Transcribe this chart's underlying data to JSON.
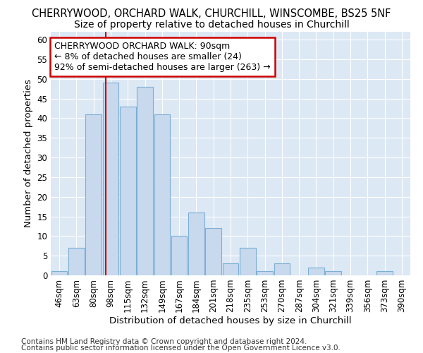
{
  "title1": "CHERRYWOOD, ORCHARD WALK, CHURCHILL, WINSCOMBE, BS25 5NF",
  "title2": "Size of property relative to detached houses in Churchill",
  "xlabel": "Distribution of detached houses by size in Churchill",
  "ylabel": "Number of detached properties",
  "footer1": "Contains HM Land Registry data © Crown copyright and database right 2024.",
  "footer2": "Contains public sector information licensed under the Open Government Licence v3.0.",
  "categories": [
    "46sqm",
    "63sqm",
    "80sqm",
    "98sqm",
    "115sqm",
    "132sqm",
    "149sqm",
    "167sqm",
    "184sqm",
    "201sqm",
    "218sqm",
    "235sqm",
    "253sqm",
    "270sqm",
    "287sqm",
    "304sqm",
    "321sqm",
    "339sqm",
    "356sqm",
    "373sqm",
    "390sqm"
  ],
  "values": [
    1,
    7,
    41,
    49,
    43,
    48,
    41,
    10,
    16,
    12,
    3,
    7,
    1,
    3,
    0,
    2,
    1,
    0,
    0,
    1,
    0
  ],
  "bar_color": "#c8d9ee",
  "bar_edge_color": "#7bafd4",
  "red_line_x": 2.72,
  "annotation_line1": "CHERRYWOOD ORCHARD WALK: 90sqm",
  "annotation_line2": "← 8% of detached houses are smaller (24)",
  "annotation_line3": "92% of semi-detached houses are larger (263) →",
  "annotation_box_color": "#ffffff",
  "annotation_box_edge": "#cc0000",
  "ylim": [
    0,
    62
  ],
  "yticks": [
    0,
    5,
    10,
    15,
    20,
    25,
    30,
    35,
    40,
    45,
    50,
    55,
    60
  ],
  "fig_bg_color": "#ffffff",
  "plot_bg_color": "#dde8f5",
  "grid_color": "#ffffff",
  "title_fontsize": 10.5,
  "subtitle_fontsize": 10,
  "axis_label_fontsize": 9.5,
  "tick_fontsize": 8.5,
  "annotation_fontsize": 9,
  "footer_fontsize": 7.5
}
